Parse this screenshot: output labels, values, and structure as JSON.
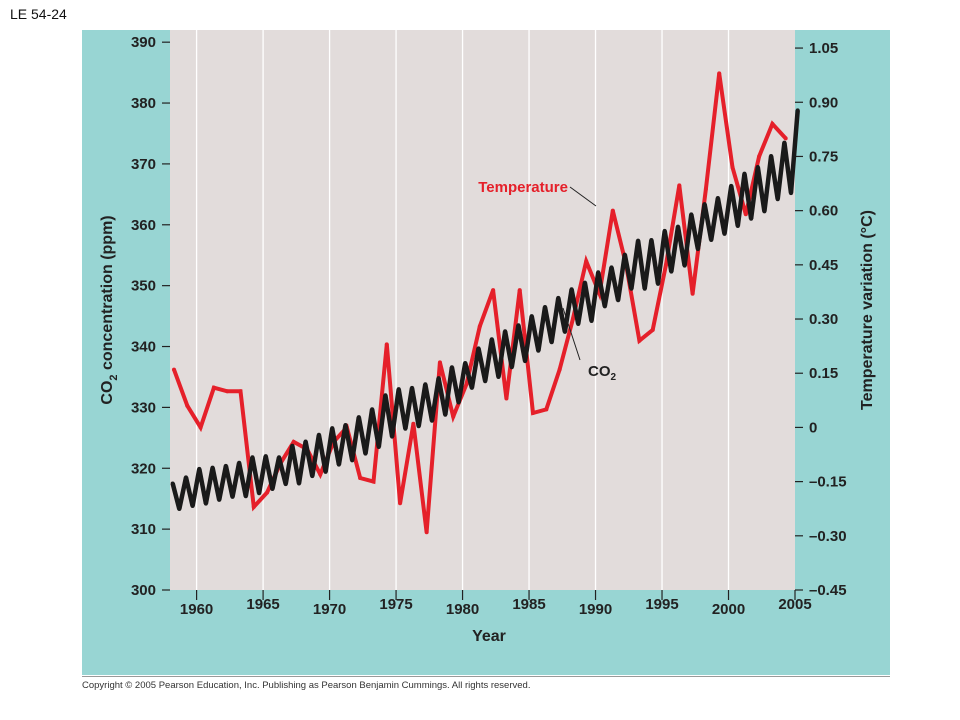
{
  "figure_label": "LE 54-24",
  "copyright": "Copyright © 2005 Pearson Education, Inc. Publishing as Pearson Benjamin Cummings. All rights reserved.",
  "colors": {
    "panel": "#98d5d3",
    "plot_bg": "#e2dcdb",
    "temperature": "#e5202a",
    "co2": "#1a1a1a",
    "grid": "#ffffff"
  },
  "chart_data": {
    "type": "line",
    "xlabel": "Year",
    "ylabel_left": "CO2 concentration (ppm)",
    "ylabel_right": "Temperature variation (°C)",
    "x_ticks": [
      "1960",
      "1965",
      "1970",
      "1975",
      "1980",
      "1985",
      "1990",
      "1995",
      "2000",
      "2005"
    ],
    "left_ticks": [
      "300",
      "310",
      "320",
      "330",
      "340",
      "350",
      "360",
      "370",
      "380",
      "390"
    ],
    "right_ticks": [
      "–0.45",
      "–0.30",
      "–0.15",
      "0",
      "0.15",
      "0.30",
      "0.45",
      "0.60",
      "0.75",
      "0.90",
      "1.05"
    ],
    "xlim": [
      1958,
      2005
    ],
    "ylim_left": [
      300,
      392
    ],
    "ylim_right": [
      -0.45,
      1.1
    ],
    "grid": "vertical lines at 5-year ticks",
    "annotations": {
      "temperature": "Temperature",
      "co2_main": "CO",
      "co2_sub": "2"
    },
    "series": [
      {
        "name": "Temperature",
        "axis": "right",
        "color": "#e5202a",
        "points": [
          [
            1958.3,
            0.16
          ],
          [
            1959.3,
            0.06
          ],
          [
            1960.3,
            0.0
          ],
          [
            1961.3,
            0.11
          ],
          [
            1962.3,
            0.1
          ],
          [
            1963.3,
            0.1
          ],
          [
            1964.3,
            -0.22
          ],
          [
            1965.3,
            -0.18
          ],
          [
            1966.3,
            -0.1
          ],
          [
            1967.3,
            -0.04
          ],
          [
            1968.3,
            -0.06
          ],
          [
            1969.3,
            -0.13
          ],
          [
            1970.3,
            -0.04
          ],
          [
            1971.3,
            0.0
          ],
          [
            1972.3,
            -0.14
          ],
          [
            1973.3,
            -0.15
          ],
          [
            1974.3,
            0.23
          ],
          [
            1975.3,
            -0.21
          ],
          [
            1976.3,
            0.01
          ],
          [
            1977.3,
            -0.29
          ],
          [
            1978.3,
            0.18
          ],
          [
            1979.3,
            0.03
          ],
          [
            1980.3,
            0.12
          ],
          [
            1981.3,
            0.28
          ],
          [
            1982.3,
            0.38
          ],
          [
            1983.3,
            0.08
          ],
          [
            1984.3,
            0.38
          ],
          [
            1985.3,
            0.04
          ],
          [
            1986.3,
            0.05
          ],
          [
            1987.3,
            0.16
          ],
          [
            1988.3,
            0.3
          ],
          [
            1989.3,
            0.46
          ],
          [
            1990.3,
            0.37
          ],
          [
            1991.3,
            0.6
          ],
          [
            1992.3,
            0.45
          ],
          [
            1993.3,
            0.24
          ],
          [
            1994.3,
            0.27
          ],
          [
            1995.3,
            0.45
          ],
          [
            1996.3,
            0.67
          ],
          [
            1997.3,
            0.37
          ],
          [
            1998.3,
            0.66
          ],
          [
            1999.3,
            0.98
          ],
          [
            2000.3,
            0.72
          ],
          [
            2001.3,
            0.59
          ],
          [
            2002.3,
            0.75
          ],
          [
            2003.3,
            0.84
          ],
          [
            2004.3,
            0.8
          ]
        ]
      },
      {
        "name": "CO2",
        "axis": "left",
        "color": "#1a1a1a",
        "points": [
          [
            1958.2,
            317.5
          ],
          [
            1958.7,
            313.3
          ],
          [
            1959.2,
            318.5
          ],
          [
            1959.7,
            313.8
          ],
          [
            1960.2,
            319.9
          ],
          [
            1960.7,
            314.2
          ],
          [
            1961.2,
            320.1
          ],
          [
            1961.7,
            314.8
          ],
          [
            1962.2,
            320.4
          ],
          [
            1962.7,
            315.3
          ],
          [
            1963.2,
            320.9
          ],
          [
            1963.7,
            315.4
          ],
          [
            1964.2,
            321.8
          ],
          [
            1964.7,
            315.9
          ],
          [
            1965.2,
            322.0
          ],
          [
            1965.7,
            316.6
          ],
          [
            1966.2,
            321.8
          ],
          [
            1966.7,
            317.4
          ],
          [
            1967.2,
            323.7
          ],
          [
            1967.7,
            317.5
          ],
          [
            1968.2,
            324.4
          ],
          [
            1968.7,
            318.7
          ],
          [
            1969.2,
            325.5
          ],
          [
            1969.7,
            319.4
          ],
          [
            1970.2,
            326.6
          ],
          [
            1970.7,
            320.6
          ],
          [
            1971.2,
            327.1
          ],
          [
            1971.7,
            321.3
          ],
          [
            1972.2,
            328.4
          ],
          [
            1972.7,
            322.4
          ],
          [
            1973.2,
            329.7
          ],
          [
            1973.7,
            323.5
          ],
          [
            1974.2,
            332.0
          ],
          [
            1974.7,
            325.2
          ],
          [
            1975.2,
            333.0
          ],
          [
            1975.7,
            326.5
          ],
          [
            1976.2,
            333.2
          ],
          [
            1976.7,
            326.9
          ],
          [
            1977.2,
            333.8
          ],
          [
            1977.7,
            327.8
          ],
          [
            1978.2,
            334.8
          ],
          [
            1978.7,
            328.8
          ],
          [
            1979.2,
            336.6
          ],
          [
            1979.7,
            330.8
          ],
          [
            1980.2,
            337.3
          ],
          [
            1980.7,
            333.2
          ],
          [
            1981.2,
            339.7
          ],
          [
            1981.7,
            334.3
          ],
          [
            1982.2,
            341.2
          ],
          [
            1982.7,
            335.0
          ],
          [
            1983.2,
            342.5
          ],
          [
            1983.7,
            336.6
          ],
          [
            1984.2,
            343.5
          ],
          [
            1984.7,
            337.6
          ],
          [
            1985.2,
            345.0
          ],
          [
            1985.7,
            339.3
          ],
          [
            1986.2,
            346.5
          ],
          [
            1986.7,
            340.7
          ],
          [
            1987.2,
            348.0
          ],
          [
            1987.7,
            342.4
          ],
          [
            1988.2,
            349.4
          ],
          [
            1988.7,
            343.7
          ],
          [
            1989.2,
            350.5
          ],
          [
            1989.7,
            344.2
          ],
          [
            1990.2,
            352.2
          ],
          [
            1990.7,
            346.6
          ],
          [
            1991.2,
            353.0
          ],
          [
            1991.7,
            347.6
          ],
          [
            1992.2,
            355.1
          ],
          [
            1992.7,
            349.5
          ],
          [
            1993.2,
            357.4
          ],
          [
            1993.7,
            349.5
          ],
          [
            1994.2,
            357.5
          ],
          [
            1994.7,
            350.3
          ],
          [
            1995.2,
            359.0
          ],
          [
            1995.7,
            352.3
          ],
          [
            1996.2,
            359.7
          ],
          [
            1996.7,
            353.3
          ],
          [
            1997.2,
            361.7
          ],
          [
            1997.7,
            356.0
          ],
          [
            1998.2,
            363.4
          ],
          [
            1998.7,
            357.5
          ],
          [
            1999.2,
            364.4
          ],
          [
            1999.7,
            358.5
          ],
          [
            2000.2,
            366.4
          ],
          [
            2000.7,
            359.8
          ],
          [
            2001.2,
            368.4
          ],
          [
            2001.7,
            361.0
          ],
          [
            2002.2,
            369.5
          ],
          [
            2002.7,
            362.2
          ],
          [
            2003.2,
            371.3
          ],
          [
            2003.7,
            364.2
          ],
          [
            2004.2,
            373.5
          ],
          [
            2004.7,
            365.2
          ],
          [
            2005.2,
            378.8
          ]
        ]
      }
    ]
  }
}
